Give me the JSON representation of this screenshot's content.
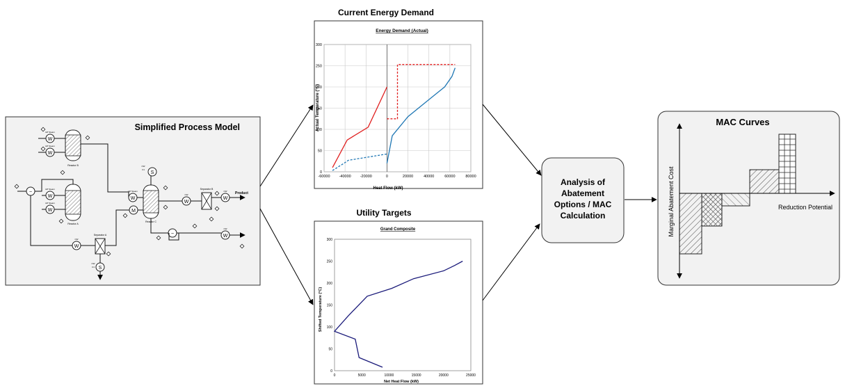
{
  "process_model": {
    "title": "Simplified Process Model",
    "tiny_labels": {
      "hp_steam": "HP Steam",
      "cw": "CW",
      "c1": "C1",
      "reactor_a": "Reactor A",
      "reactor_b": "Reactor B",
      "reactor_c": "Reactor C",
      "separator_a": "Separator A",
      "separator_b": "Separator B",
      "product": "Product"
    }
  },
  "energy_chart": {
    "heading": "Current Energy Demand",
    "inner_title": "Energy Demand (Actual)",
    "chart_data": {
      "type": "line",
      "title": "Energy Demand (Actual)",
      "xlabel": "Heat Flow (kW)",
      "ylabel": "Actual Temperature (°C)",
      "xlim": [
        -60000,
        80000
      ],
      "ylim": [
        0,
        300
      ],
      "xticks": [
        -60000,
        -40000,
        -20000,
        0,
        20000,
        40000,
        60000,
        80000
      ],
      "xtick_labels": [
        "-60000",
        "-40000",
        "-20000",
        "0",
        "20000",
        "40000",
        "60000",
        "80000"
      ],
      "yticks": [
        0,
        50,
        100,
        150,
        200,
        250,
        300
      ],
      "ytick_labels": [
        "0",
        "50",
        "100",
        "150",
        "200",
        "250",
        "300"
      ],
      "grid": true,
      "series": [
        {
          "color": "#e02020",
          "style": "solid",
          "points": [
            [
              -52000,
              10
            ],
            [
              -38000,
              75
            ],
            [
              -18000,
              105
            ],
            [
              0,
              200
            ]
          ]
        },
        {
          "color": "#e02020",
          "style": "dashed",
          "points": [
            [
              0,
              125
            ],
            [
              10000,
              125
            ],
            [
              10000,
              253
            ],
            [
              65000,
              253
            ]
          ]
        },
        {
          "color": "#1f77b4",
          "style": "solid",
          "points": [
            [
              0,
              20
            ],
            [
              5000,
              85
            ],
            [
              20000,
              130
            ],
            [
              40000,
              170
            ],
            [
              55000,
              200
            ],
            [
              62000,
              225
            ],
            [
              65000,
              245
            ]
          ]
        },
        {
          "color": "#1f77b4",
          "style": "dashed",
          "points": [
            [
              -52000,
              3
            ],
            [
              -38000,
              25
            ],
            [
              -37000,
              27
            ],
            [
              0,
              42
            ]
          ]
        }
      ]
    }
  },
  "grand_composite": {
    "heading": "Utility Targets",
    "inner_title": "Grand Composite",
    "chart_data": {
      "type": "line",
      "title": "Grand Composite",
      "xlabel": "Net Heat Flow (kW)",
      "ylabel": "Shifted Temperature (°C)",
      "xlim": [
        0,
        25000
      ],
      "ylim": [
        0,
        300
      ],
      "xticks": [
        0,
        5000,
        10000,
        15000,
        20000,
        25000
      ],
      "xtick_labels": [
        "0",
        "5000",
        "10000",
        "15000",
        "20000",
        "25000"
      ],
      "yticks": [
        0,
        50,
        100,
        150,
        200,
        250,
        300
      ],
      "ytick_labels": [
        "0",
        "50",
        "100",
        "150",
        "200",
        "250",
        "300"
      ],
      "grid": false,
      "series": [
        {
          "color": "#1a1a7a",
          "style": "solid",
          "points": [
            [
              8800,
              8
            ],
            [
              4500,
              30
            ],
            [
              3800,
              72
            ],
            [
              0,
              90
            ],
            [
              2500,
              125
            ],
            [
              6000,
              170
            ],
            [
              10500,
              188
            ],
            [
              14500,
              210
            ],
            [
              20000,
              228
            ],
            [
              22000,
              240
            ],
            [
              23500,
              250
            ]
          ]
        }
      ]
    }
  },
  "analysis_box": {
    "lines": [
      "Analysis of",
      "Abatement",
      "Options / MAC",
      "Calculation"
    ]
  },
  "mac_curves": {
    "title": "MAC Curves",
    "y_axis_label": "Marginal Abatement Cost",
    "x_axis_label": "Reduction Potential"
  }
}
